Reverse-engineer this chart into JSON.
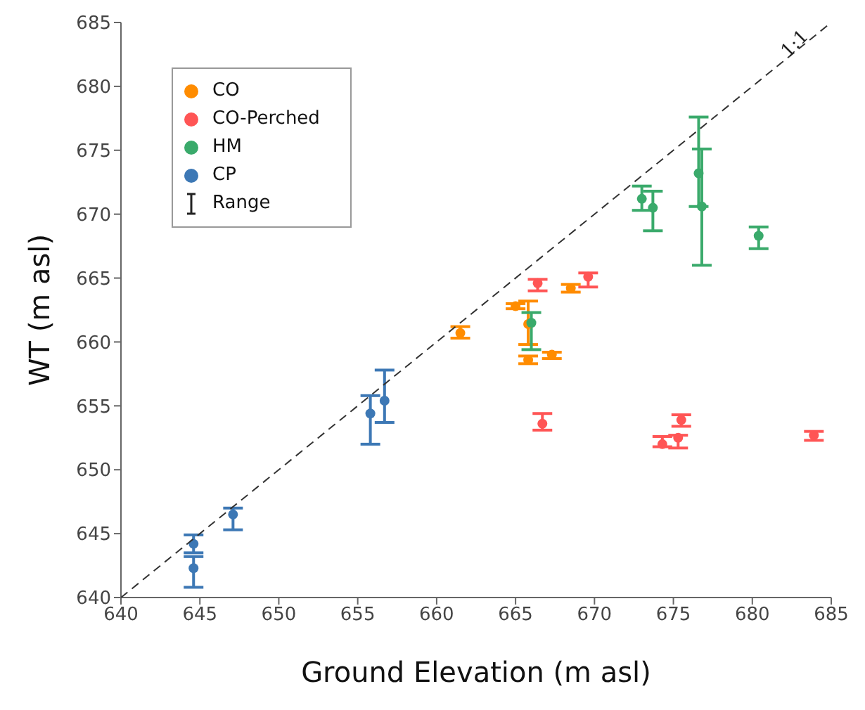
{
  "chart_data": {
    "type": "scatter",
    "xlabel": "Ground Elevation (m asl)",
    "ylabel": "WT (m asl)",
    "xlim": [
      640,
      685
    ],
    "xticks": [
      640,
      645,
      650,
      655,
      660,
      665,
      670,
      675,
      680,
      685
    ],
    "ylim": [
      640,
      685
    ],
    "yticks": [
      640,
      645,
      650,
      655,
      660,
      665,
      670,
      675,
      680,
      685
    ],
    "legend": "top left",
    "marker": "circle",
    "series": [
      {
        "name": "CO",
        "color": "#ff8c00",
        "x": [
          661.5,
          665.0,
          665.8,
          665.8,
          667.3,
          668.5
        ],
        "values": [
          660.7,
          662.8,
          661.4,
          658.6,
          659.0,
          664.2
        ],
        "errors": [
          [
            660.3,
            661.2
          ],
          [
            662.6,
            663.0
          ],
          [
            659.8,
            663.2
          ],
          [
            658.3,
            658.9
          ],
          [
            658.7,
            659.2
          ],
          [
            663.9,
            664.5
          ]
        ]
      },
      {
        "name": "CO-Perched",
        "color": "#ff5555",
        "x": [
          666.4,
          669.6,
          666.7,
          674.3,
          675.3,
          675.5,
          683.9
        ],
        "values": [
          664.6,
          665.1,
          653.6,
          652.0,
          652.5,
          653.9,
          652.7
        ],
        "errors": [
          [
            664.0,
            664.9
          ],
          [
            664.3,
            665.4
          ],
          [
            653.1,
            654.4
          ],
          [
            651.8,
            652.6
          ],
          [
            651.7,
            652.7
          ],
          [
            653.4,
            654.3
          ],
          [
            652.3,
            653.0
          ]
        ]
      },
      {
        "name": "HM",
        "color": "#3aaa6b",
        "x": [
          666.0,
          673.0,
          673.7,
          676.6,
          676.8,
          680.4
        ],
        "values": [
          661.5,
          671.2,
          670.5,
          673.2,
          670.6,
          668.3
        ],
        "errors": [
          [
            659.4,
            662.3
          ],
          [
            670.3,
            672.2
          ],
          [
            668.7,
            671.8
          ],
          [
            670.6,
            677.6
          ],
          [
            666.0,
            675.1
          ],
          [
            667.3,
            669.0
          ]
        ]
      },
      {
        "name": "CP",
        "color": "#3d78b5",
        "x": [
          644.6,
          644.6,
          647.1,
          655.8,
          656.7
        ],
        "values": [
          644.2,
          642.3,
          646.5,
          654.4,
          655.4
        ],
        "errors": [
          [
            643.5,
            644.9
          ],
          [
            640.8,
            643.2
          ],
          [
            645.3,
            647.0
          ],
          [
            652.0,
            655.8
          ],
          [
            653.7,
            657.8
          ]
        ]
      },
      {
        "type": "line",
        "color": "#333333",
        "line_style": "dashed",
        "marker": "none",
        "x": [
          640,
          685
        ],
        "values": [
          640,
          685
        ]
      }
    ],
    "annotations": [
      {
        "text": "1:1",
        "x": 683,
        "y": 683
      },
      "Range"
    ]
  }
}
